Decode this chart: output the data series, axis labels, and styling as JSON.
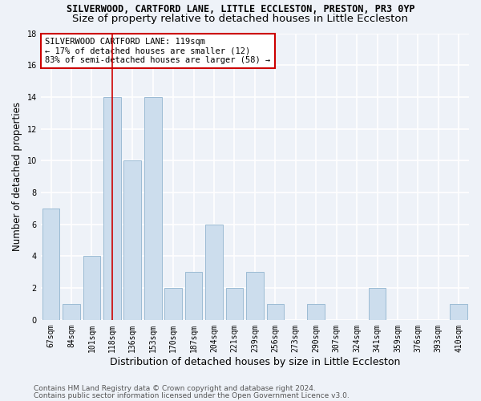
{
  "title1": "SILVERWOOD, CARTFORD LANE, LITTLE ECCLESTON, PRESTON, PR3 0YP",
  "title2": "Size of property relative to detached houses in Little Eccleston",
  "xlabel": "Distribution of detached houses by size in Little Eccleston",
  "ylabel": "Number of detached properties",
  "categories": [
    "67sqm",
    "84sqm",
    "101sqm",
    "118sqm",
    "136sqm",
    "153sqm",
    "170sqm",
    "187sqm",
    "204sqm",
    "221sqm",
    "239sqm",
    "256sqm",
    "273sqm",
    "290sqm",
    "307sqm",
    "324sqm",
    "341sqm",
    "359sqm",
    "376sqm",
    "393sqm",
    "410sqm"
  ],
  "values": [
    7,
    1,
    4,
    14,
    10,
    14,
    2,
    3,
    6,
    2,
    3,
    1,
    0,
    1,
    0,
    0,
    2,
    0,
    0,
    0,
    1
  ],
  "bar_color": "#ccdded",
  "bar_edge_color": "#9bbbd4",
  "vline_x_index": 3,
  "vline_color": "#cc0000",
  "annotation_text": "SILVERWOOD CARTFORD LANE: 119sqm\n← 17% of detached houses are smaller (12)\n83% of semi-detached houses are larger (58) →",
  "annotation_box_color": "white",
  "annotation_box_edge_color": "#cc0000",
  "ylim": [
    0,
    18
  ],
  "yticks": [
    0,
    2,
    4,
    6,
    8,
    10,
    12,
    14,
    16,
    18
  ],
  "footer1": "Contains HM Land Registry data © Crown copyright and database right 2024.",
  "footer2": "Contains public sector information licensed under the Open Government Licence v3.0.",
  "bg_color": "#eef2f8",
  "grid_color": "white",
  "title1_fontsize": 8.5,
  "title2_fontsize": 9.5,
  "xlabel_fontsize": 9,
  "ylabel_fontsize": 8.5,
  "tick_fontsize": 7,
  "annotation_fontsize": 7.5,
  "footer_fontsize": 6.5
}
